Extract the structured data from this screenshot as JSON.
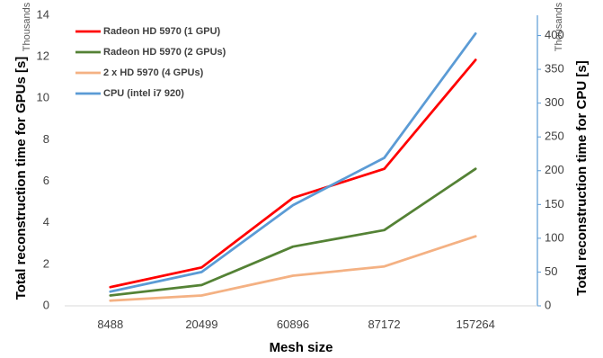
{
  "chart_data": {
    "type": "line",
    "xlabel": "Mesh size",
    "ylabel_left": "Total reconstruction time for GPUs [s]",
    "ylabel_right": "Total reconstruction time for CPU [s]",
    "left_units": "Thousands",
    "right_units": "Thousands",
    "categories": [
      "8488",
      "20499",
      "60896",
      "87172",
      "157264"
    ],
    "y_left": {
      "min": 0,
      "max": 14,
      "ticks": [
        "0",
        "2",
        "4",
        "6",
        "8",
        "10",
        "12",
        "14"
      ]
    },
    "y_right": {
      "min": 0,
      "max": 430,
      "ticks": [
        "0",
        "50",
        "100",
        "150",
        "200",
        "250",
        "300",
        "350",
        "400"
      ]
    },
    "grid": false,
    "legend_position": "top-left",
    "series": [
      {
        "name": "Radeon HD 5970 (1 GPU)",
        "axis": "left",
        "color": "#ff0000",
        "values": [
          0.9,
          1.85,
          5.2,
          6.6,
          11.85
        ]
      },
      {
        "name": "Radeon HD 5970 (2 GPUs)",
        "axis": "left",
        "color": "#548235",
        "values": [
          0.5,
          1.0,
          2.85,
          3.65,
          6.6
        ]
      },
      {
        "name": "2 x HD 5970 (4 GPUs)",
        "axis": "left",
        "color": "#f4b183",
        "values": [
          0.25,
          0.5,
          1.45,
          1.9,
          3.35
        ]
      },
      {
        "name": "CPU (intel i7 920)",
        "axis": "right",
        "color": "#5b9bd5",
        "values": [
          21,
          50,
          149,
          219,
          403
        ]
      }
    ]
  }
}
